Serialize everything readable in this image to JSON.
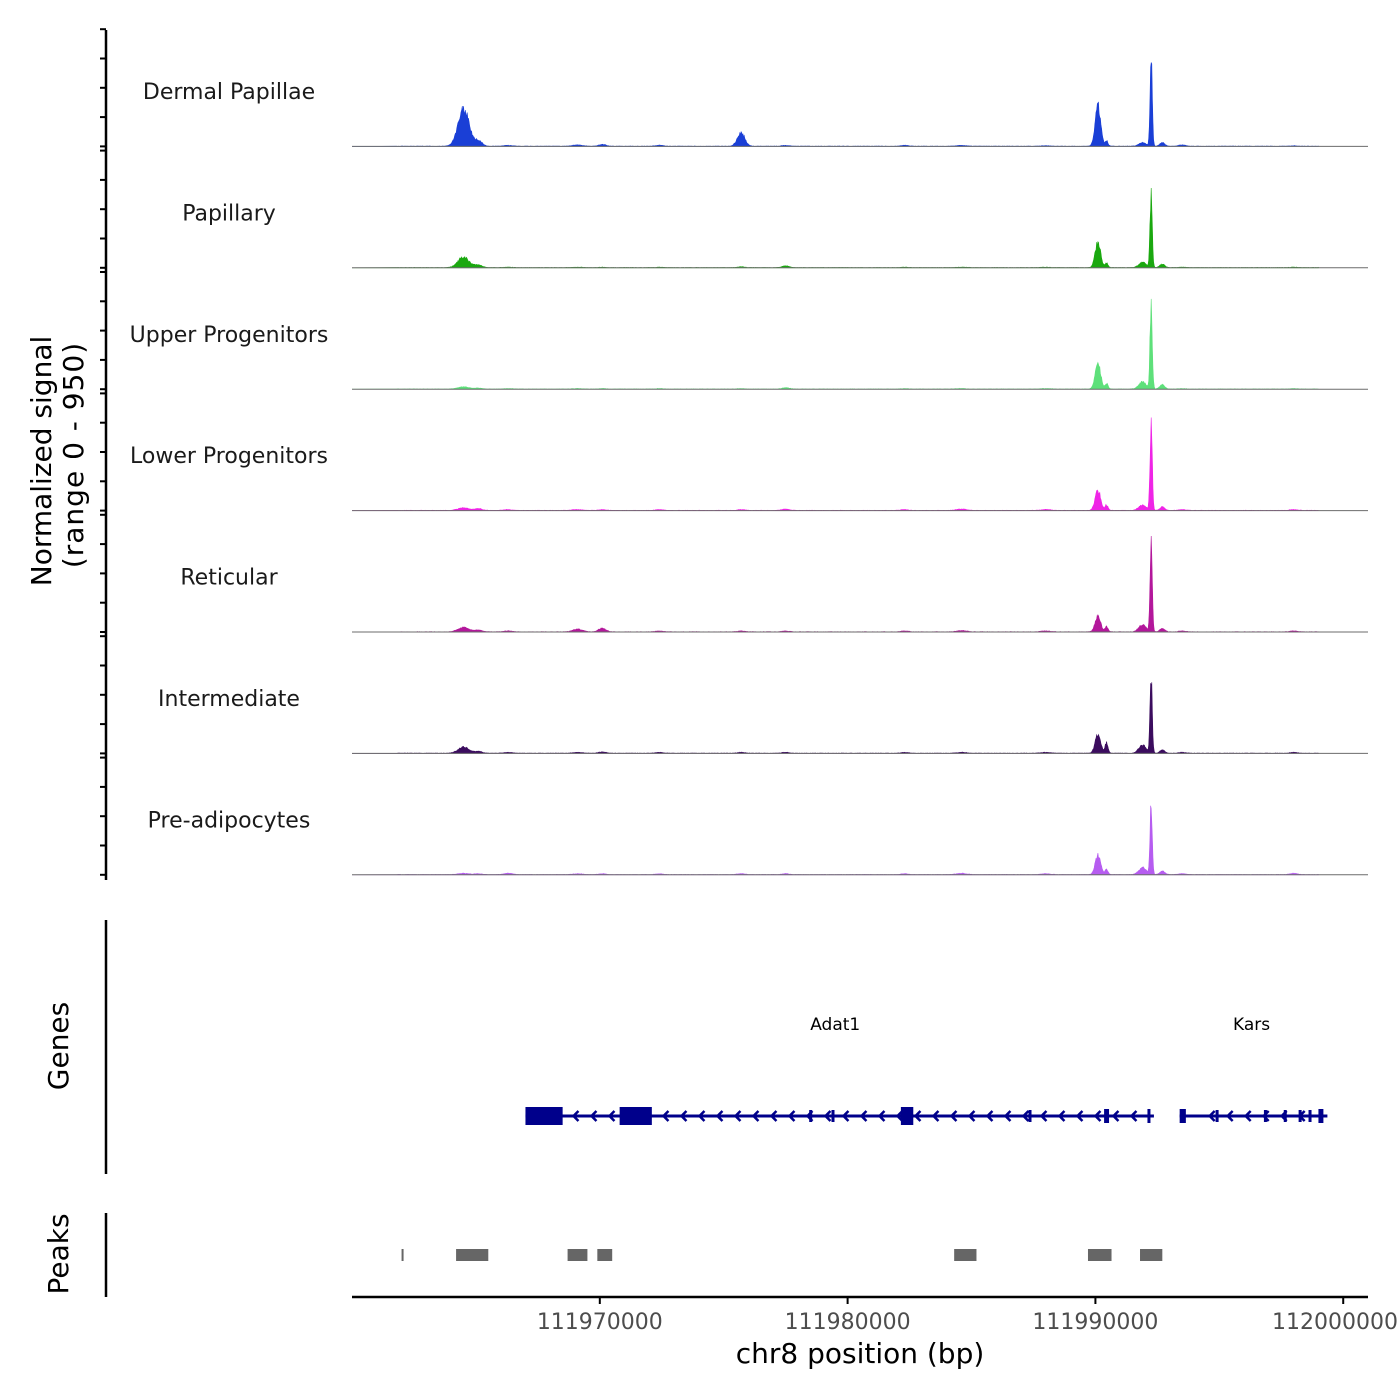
{
  "chart_data": {
    "type": "area",
    "title": "",
    "chromosome": "chr8",
    "xlabel": "chr8 position (bp)",
    "ylabel_line1": "Normalized signal",
    "ylabel_line2": "(range 0 - 950)",
    "ylim": [
      0,
      950
    ],
    "xlim": [
      111960000,
      112001000
    ],
    "x_ticks": [
      111970000,
      111980000,
      111990000,
      112000000
    ],
    "x_tick_labels": [
      "111970000",
      "111980000",
      "111990000",
      "112000000"
    ],
    "grid": false,
    "peak_centers": [
      {
        "pos": 111964500,
        "width": 220
      },
      {
        "pos": 111965100,
        "width": 150
      },
      {
        "pos": 111966300,
        "width": 180
      },
      {
        "pos": 111969100,
        "width": 200
      },
      {
        "pos": 111970100,
        "width": 150
      },
      {
        "pos": 111972400,
        "width": 150
      },
      {
        "pos": 111975700,
        "width": 150
      },
      {
        "pos": 111977500,
        "width": 150
      },
      {
        "pos": 111982300,
        "width": 150
      },
      {
        "pos": 111984600,
        "width": 200
      },
      {
        "pos": 111988000,
        "width": 200
      },
      {
        "pos": 111990100,
        "width": 110
      },
      {
        "pos": 111990450,
        "width": 60
      },
      {
        "pos": 111991900,
        "width": 150
      },
      {
        "pos": 111992250,
        "width": 45
      },
      {
        "pos": 111992700,
        "width": 100
      },
      {
        "pos": 111993500,
        "width": 150
      },
      {
        "pos": 111998000,
        "width": 150
      }
    ],
    "series": [
      {
        "name": "Dermal Papillae",
        "color": "#1a3fd6",
        "values": [
          420,
          60,
          10,
          15,
          20,
          12,
          150,
          10,
          10,
          10,
          5,
          450,
          60,
          40,
          950,
          40,
          15,
          5
        ]
      },
      {
        "name": "Papillary",
        "color": "#1aa80f",
        "values": [
          120,
          30,
          5,
          5,
          5,
          5,
          10,
          20,
          5,
          5,
          5,
          280,
          50,
          60,
          870,
          40,
          5,
          5
        ]
      },
      {
        "name": "Upper Progenitors",
        "color": "#5ee07a",
        "values": [
          25,
          10,
          5,
          5,
          5,
          5,
          5,
          15,
          5,
          5,
          5,
          300,
          60,
          80,
          950,
          50,
          5,
          5
        ]
      },
      {
        "name": "Lower Progenitors",
        "color": "#ef24e6",
        "values": [
          30,
          20,
          10,
          10,
          10,
          10,
          10,
          15,
          10,
          15,
          10,
          230,
          60,
          60,
          950,
          40,
          10,
          10
        ]
      },
      {
        "name": "Reticular",
        "color": "#b3179b",
        "values": [
          50,
          20,
          10,
          30,
          40,
          10,
          10,
          10,
          10,
          15,
          10,
          180,
          60,
          80,
          950,
          40,
          10,
          10
        ]
      },
      {
        "name": "Intermediate",
        "color": "#3b0c5e",
        "values": [
          70,
          20,
          10,
          10,
          15,
          10,
          10,
          10,
          10,
          10,
          10,
          220,
          120,
          90,
          850,
          40,
          10,
          10
        ]
      },
      {
        "name": "Pre-adipocytes",
        "color": "#b65cf0",
        "values": [
          15,
          10,
          15,
          10,
          10,
          10,
          10,
          10,
          10,
          15,
          10,
          220,
          60,
          80,
          800,
          40,
          10,
          15
        ]
      }
    ],
    "genes": [
      {
        "name": "Adat1",
        "start": 111967000,
        "end": 111992200,
        "strand": "-",
        "label_pos": 111979500
      },
      {
        "name": "Kars",
        "start": 111993400,
        "end": 111999200,
        "strand": "-",
        "label_pos": 111996300
      }
    ],
    "peaks_track_label": "Peaks",
    "genes_track_label": "Genes",
    "peaks": [
      [
        111962000,
        111962050
      ],
      [
        111964200,
        111965500
      ],
      [
        111968700,
        111969500
      ],
      [
        111969900,
        111970500
      ],
      [
        111984300,
        111985200
      ],
      [
        111989700,
        111990650
      ],
      [
        111991800,
        111992700
      ]
    ]
  },
  "colors": {
    "peak_fill": "#666666",
    "gene_color": "#00008b",
    "baseline": "#6b6b6b",
    "axis": "#000000"
  }
}
